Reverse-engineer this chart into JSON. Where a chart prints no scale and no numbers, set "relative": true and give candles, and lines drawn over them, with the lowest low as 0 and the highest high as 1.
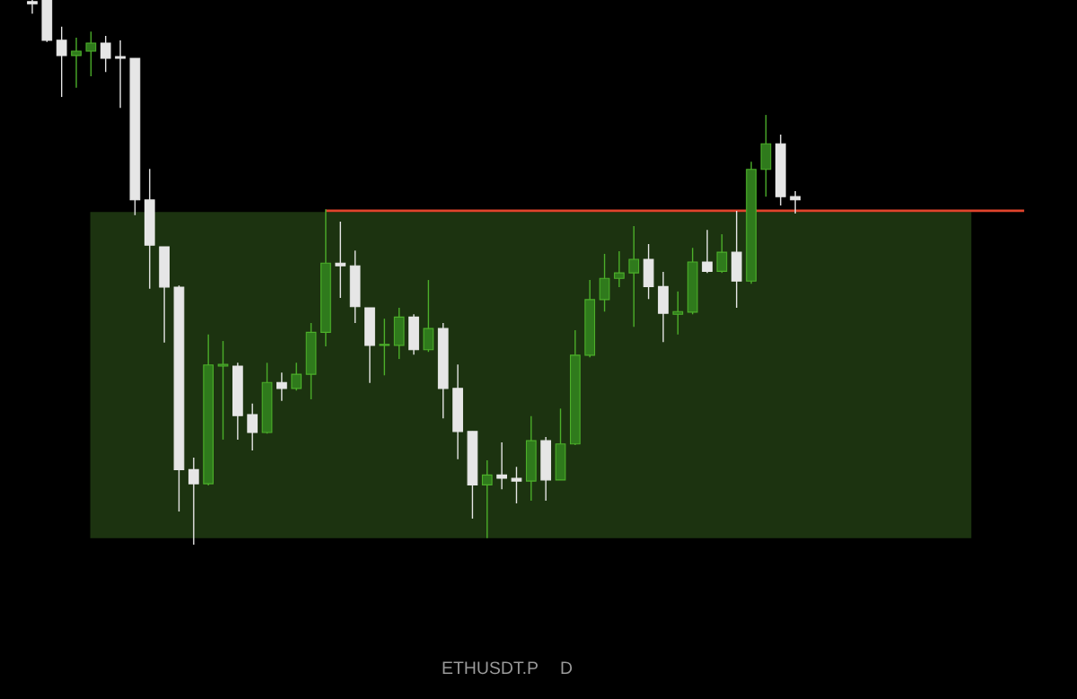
{
  "chart_data": {
    "type": "candlestick",
    "relative": true,
    "categories": [
      null,
      null,
      null,
      null,
      null,
      null,
      null,
      null,
      null,
      null,
      null,
      null,
      null,
      null,
      null,
      null,
      null,
      null,
      null,
      null,
      null,
      null,
      null,
      null,
      null,
      null,
      null,
      null,
      null,
      null,
      null,
      null,
      null,
      null,
      null,
      null,
      null,
      null,
      null,
      null,
      null,
      null,
      null,
      null,
      null,
      null,
      null,
      null,
      null,
      null,
      null,
      null,
      null
    ],
    "ohlc": [
      [
        0.997,
        1.0,
        0.975,
        0.993
      ],
      [
        1.0,
        1.0,
        0.923,
        0.926
      ],
      [
        0.926,
        0.951,
        0.822,
        0.898
      ],
      [
        0.898,
        0.931,
        0.839,
        0.906
      ],
      [
        0.906,
        0.942,
        0.86,
        0.921
      ],
      [
        0.921,
        0.934,
        0.868,
        0.893
      ],
      [
        0.896,
        0.926,
        0.802,
        0.893
      ],
      [
        0.893,
        0.893,
        0.605,
        0.633
      ],
      [
        0.633,
        0.69,
        0.47,
        0.55
      ],
      [
        0.547,
        0.547,
        0.371,
        0.473
      ],
      [
        0.473,
        0.476,
        0.061,
        0.138
      ],
      [
        0.138,
        0.16,
        0.0,
        0.112
      ],
      [
        0.112,
        0.386,
        0.109,
        0.33
      ],
      [
        0.328,
        0.374,
        0.193,
        0.331
      ],
      [
        0.328,
        0.334,
        0.193,
        0.237
      ],
      [
        0.239,
        0.259,
        0.173,
        0.206
      ],
      [
        0.206,
        0.334,
        0.204,
        0.298
      ],
      [
        0.298,
        0.316,
        0.264,
        0.287
      ],
      [
        0.287,
        0.334,
        0.283,
        0.313
      ],
      [
        0.313,
        0.407,
        0.267,
        0.39
      ],
      [
        0.39,
        0.616,
        0.364,
        0.517
      ],
      [
        0.517,
        0.593,
        0.453,
        0.512
      ],
      [
        0.512,
        0.54,
        0.407,
        0.437
      ],
      [
        0.435,
        0.435,
        0.297,
        0.366
      ],
      [
        0.366,
        0.415,
        0.311,
        0.367
      ],
      [
        0.366,
        0.435,
        0.341,
        0.418
      ],
      [
        0.418,
        0.423,
        0.349,
        0.358
      ],
      [
        0.358,
        0.486,
        0.354,
        0.397
      ],
      [
        0.397,
        0.407,
        0.232,
        0.287
      ],
      [
        0.287,
        0.331,
        0.157,
        0.208
      ],
      [
        0.208,
        0.208,
        0.048,
        0.11
      ],
      [
        0.11,
        0.155,
        0.012,
        0.128
      ],
      [
        0.128,
        0.188,
        0.102,
        0.122
      ],
      [
        0.122,
        0.143,
        0.076,
        0.117
      ],
      [
        0.117,
        0.236,
        0.081,
        0.191
      ],
      [
        0.191,
        0.198,
        0.081,
        0.119
      ],
      [
        0.119,
        0.25,
        0.119,
        0.185
      ],
      [
        0.185,
        0.394,
        0.183,
        0.348
      ],
      [
        0.348,
        0.486,
        0.344,
        0.45
      ],
      [
        0.45,
        0.534,
        0.428,
        0.489
      ],
      [
        0.489,
        0.539,
        0.473,
        0.499
      ],
      [
        0.499,
        0.585,
        0.4,
        0.524
      ],
      [
        0.524,
        0.552,
        0.451,
        0.474
      ],
      [
        0.474,
        0.501,
        0.372,
        0.425
      ],
      [
        0.423,
        0.465,
        0.386,
        0.428
      ],
      [
        0.427,
        0.545,
        0.423,
        0.519
      ],
      [
        0.519,
        0.578,
        0.499,
        0.502
      ],
      [
        0.502,
        0.57,
        0.499,
        0.537
      ],
      [
        0.537,
        0.613,
        0.435,
        0.484
      ],
      [
        0.484,
        0.703,
        0.479,
        0.689
      ],
      [
        0.689,
        0.789,
        0.639,
        0.736
      ],
      [
        0.736,
        0.753,
        0.623,
        0.639
      ],
      [
        0.639,
        0.649,
        0.608,
        0.633
      ]
    ],
    "colors": [
      "#e6e6e6",
      "#e6e6e6",
      "#e6e6e6",
      "#2f7a1c",
      "#2f7a1c",
      "#e6e6e6",
      "#e6e6e6",
      "#e6e6e6",
      "#e6e6e6",
      "#e6e6e6",
      "#e6e6e6",
      "#e6e6e6",
      "#2f7a1c",
      "#2f7a1c",
      "#e6e6e6",
      "#e6e6e6",
      "#2f7a1c",
      "#e6e6e6",
      "#2f7a1c",
      "#2f7a1c",
      "#2f7a1c",
      "#e6e6e6",
      "#e6e6e6",
      "#e6e6e6",
      "#2f7a1c",
      "#2f7a1c",
      "#e6e6e6",
      "#2f7a1c",
      "#e6e6e6",
      "#e6e6e6",
      "#e6e6e6",
      "#2f7a1c",
      "#e6e6e6",
      "#e6e6e6",
      "#2f7a1c",
      "#e6e6e6",
      "#2f7a1c",
      "#2f7a1c",
      "#2f7a1c",
      "#2f7a1c",
      "#2f7a1c",
      "#2f7a1c",
      "#e6e6e6",
      "#e6e6e6",
      "#2f7a1c",
      "#2f7a1c",
      "#e6e6e6",
      "#2f7a1c",
      "#e6e6e6",
      "#2f7a1c",
      "#2f7a1c",
      "#e6e6e6",
      "#e6e6e6"
    ],
    "bands": [
      {
        "axis": "y",
        "from": 0.012,
        "to": 0.611,
        "color": "#1c3310"
      }
    ],
    "ref_lines": [
      {
        "axis": "y",
        "value": 0.613,
        "color": "#e0442c",
        "line_style": "solid"
      }
    ],
    "annotations": [
      "ETHUSDT.P",
      "D"
    ],
    "grid": false
  }
}
